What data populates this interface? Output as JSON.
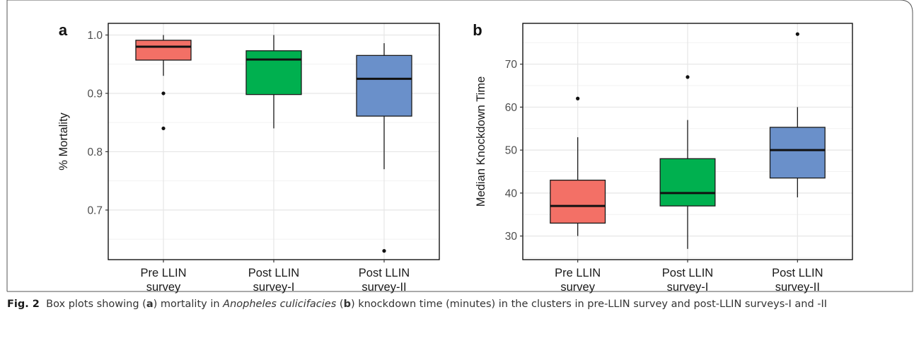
{
  "figure": {
    "caption_label": "Fig. 2",
    "caption_parts": {
      "p1": "Box plots showing (",
      "a": "a",
      "p2": ") mortality in ",
      "species": "Anopheles culicifacies",
      "p3": " (",
      "b": "b",
      "p4": ") knockdown time (minutes) in the clusters in pre-LLIN survey and post-LLIN surveys-I and -II"
    }
  },
  "colors": {
    "pre": "#F37066",
    "post1": "#00B04F",
    "post2": "#6A90CA",
    "grid": "#E6E6E6",
    "frame": "#000000"
  },
  "chart_data": [
    {
      "type": "box",
      "panel_label": "a",
      "ylabel": "% Mortality",
      "xlabel": "",
      "ylim": [
        0.615,
        1.02
      ],
      "yticks": [
        0.7,
        0.8,
        0.9,
        1.0
      ],
      "ytick_labels": [
        "0.7",
        "0.8",
        "0.9",
        "1.0"
      ],
      "grid": true,
      "categories": [
        "Pre LLIN\nsurvey",
        "Post LLIN\nsurvey-I",
        "Post LLIN\nsurvey-II"
      ],
      "boxes": [
        {
          "whisker_low": 0.93,
          "q1": 0.957,
          "median": 0.98,
          "q3": 0.991,
          "whisker_high": 1.0,
          "outliers": [
            0.9,
            0.84
          ]
        },
        {
          "whisker_low": 0.84,
          "q1": 0.898,
          "median": 0.958,
          "q3": 0.973,
          "whisker_high": 1.0,
          "outliers": []
        },
        {
          "whisker_low": 0.77,
          "q1": 0.861,
          "median": 0.925,
          "q3": 0.965,
          "whisker_high": 0.986,
          "outliers": [
            0.63
          ]
        }
      ]
    },
    {
      "type": "box",
      "panel_label": "b",
      "ylabel": "Median Knockdown Time",
      "xlabel": "",
      "ylim": [
        24.5,
        79.5
      ],
      "yticks": [
        30,
        40,
        50,
        60,
        70
      ],
      "ytick_labels": [
        "30",
        "40",
        "50",
        "60",
        "70"
      ],
      "grid": true,
      "categories": [
        "Pre LLIN\nsurvey",
        "Post LLIN\nsurvey-I",
        "Post LLIN\nsurvey-II"
      ],
      "boxes": [
        {
          "whisker_low": 30,
          "q1": 33,
          "median": 37,
          "q3": 43,
          "whisker_high": 53,
          "outliers": [
            62
          ]
        },
        {
          "whisker_low": 27,
          "q1": 37,
          "median": 40,
          "q3": 48,
          "whisker_high": 57,
          "outliers": [
            67
          ]
        },
        {
          "whisker_low": 39,
          "q1": 43.5,
          "median": 50,
          "q3": 55.3,
          "whisker_high": 60,
          "outliers": [
            77
          ]
        }
      ]
    }
  ]
}
